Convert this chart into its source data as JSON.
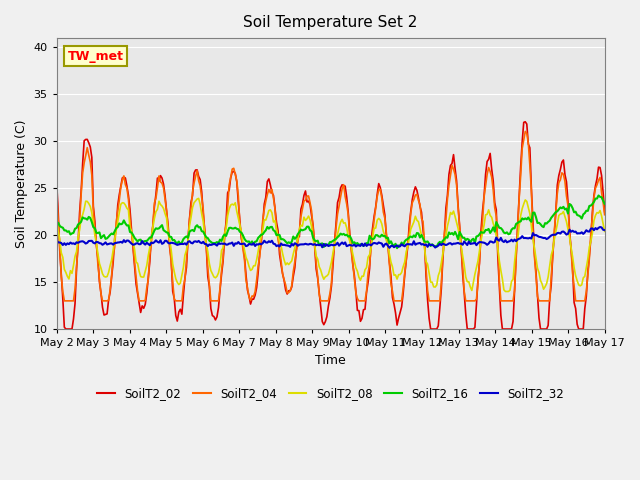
{
  "title": "Soil Temperature Set 2",
  "xlabel": "Time",
  "ylabel": "Soil Temperature (C)",
  "ylim": [
    10,
    41
  ],
  "yticks": [
    10,
    15,
    20,
    25,
    30,
    35,
    40
  ],
  "background_color": "#e8e8e8",
  "series": {
    "SoilT2_02": {
      "color": "#dd0000",
      "lw": 1.2
    },
    "SoilT2_04": {
      "color": "#ff6600",
      "lw": 1.2
    },
    "SoilT2_08": {
      "color": "#dddd00",
      "lw": 1.2
    },
    "SoilT2_16": {
      "color": "#00cc00",
      "lw": 1.5
    },
    "SoilT2_32": {
      "color": "#0000cc",
      "lw": 1.5
    }
  },
  "xtick_labels": [
    "May 2",
    "May 3",
    "May 4",
    "May 5",
    "May 6",
    "May 7",
    "May 8",
    "May 9",
    "May 10",
    "May 11",
    "May 12",
    "May 13",
    "May 14",
    "May 15",
    "May 16",
    "May 17"
  ],
  "annotation_box": "TW_met",
  "legend_order": [
    "SoilT2_02",
    "SoilT2_04",
    "SoilT2_08",
    "SoilT2_16",
    "SoilT2_32"
  ]
}
